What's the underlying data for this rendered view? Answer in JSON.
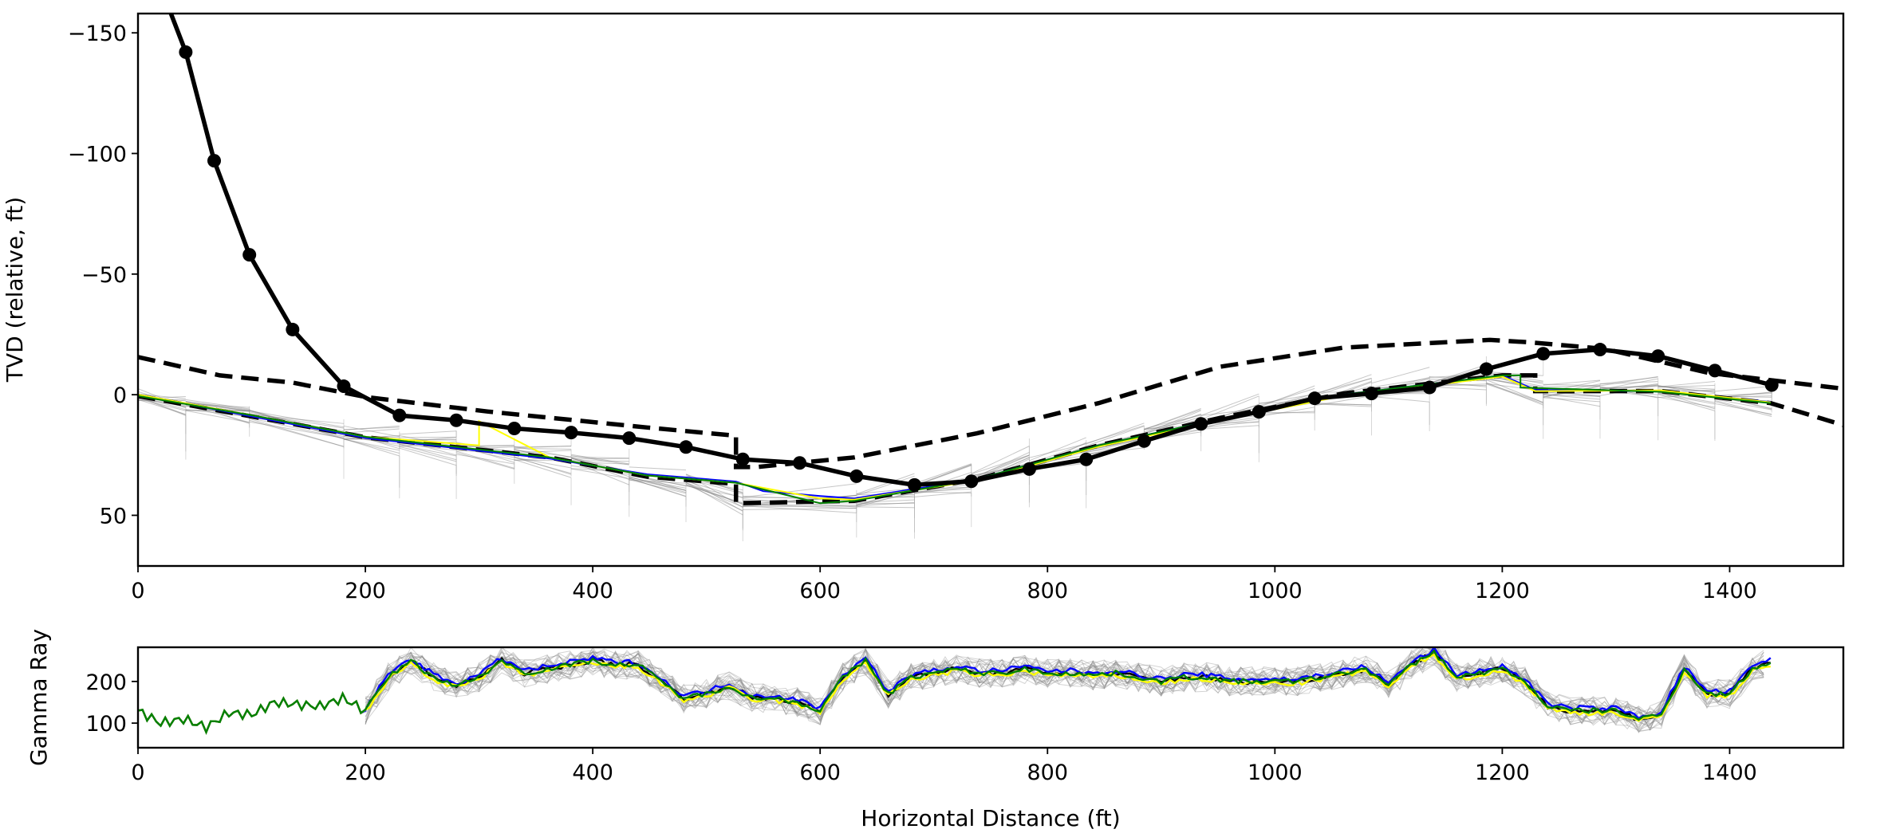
{
  "chart_data": [
    {
      "type": "line",
      "xlabel": "",
      "ylabel": "TVD (relative, ft)",
      "xlim": [
        0,
        1500
      ],
      "ylim": [
        71,
        -158
      ],
      "y_inverted": true,
      "grid": false,
      "xticks": [
        "0",
        "200",
        "400",
        "600",
        "800",
        "1000",
        "1200",
        "1400"
      ],
      "yticks": [
        "−150",
        "−100",
        "−50",
        "0",
        "50"
      ],
      "ytick_values": [
        -150,
        -100,
        -50,
        0,
        50
      ],
      "xtick_values": [
        0,
        200,
        400,
        600,
        800,
        1000,
        1200,
        1400
      ],
      "colors": {
        "trajectory": "#000000",
        "boundary": "#000000",
        "blue": "#0000ff",
        "yellow": "#ffff00",
        "green": "#008000",
        "ensemble": "#808080"
      },
      "series": [
        {
          "style": "solid-markers",
          "color": "#000000",
          "x": [
            29,
            42,
            67,
            98,
            136,
            181,
            230,
            280,
            331,
            381,
            432,
            482,
            532,
            582,
            632,
            683,
            733,
            784,
            834,
            885,
            935,
            986,
            1035,
            1085,
            1136,
            1186,
            1236,
            1286,
            1337,
            1387,
            1437
          ],
          "y": [
            -158,
            -142,
            -97,
            -58,
            -27,
            -3.5,
            8.6,
            10.6,
            14,
            15.7,
            18,
            21.7,
            26.8,
            28.3,
            33.8,
            37.4,
            35.9,
            30.8,
            26.8,
            19.2,
            12.1,
            7.1,
            1.5,
            -0.5,
            -3,
            -10.6,
            -17,
            -18.7,
            -16,
            -10,
            -4
          ]
        },
        {
          "style": "dashed",
          "color": "#000000",
          "x": [
            0,
            72,
            136,
            201,
            308,
            448,
            526,
            526,
            544,
            630,
            738,
            845,
            952,
            1060,
            1189,
            1225,
            1290,
            1382,
            1500
          ],
          "y": [
            -15.6,
            -8,
            -5,
            1,
            7,
            13.6,
            17,
            30,
            30,
            26,
            16,
            3.5,
            -11.6,
            -19.5,
            -22.7,
            -21.7,
            -19,
            -9,
            -2.5
          ]
        },
        {
          "style": "dashed",
          "color": "#000000",
          "x": [
            0,
            100,
            201,
            362,
            448,
            526,
            526,
            630,
            738,
            845,
            952,
            1060,
            1200,
            1229,
            1229,
            1339,
            1436,
            1500
          ],
          "y": [
            0.5,
            9,
            17.7,
            26,
            34,
            37,
            45,
            44,
            35,
            21,
            9.6,
            -0.5,
            -8,
            -8,
            -1.5,
            -1.5,
            3.5,
            12.6
          ]
        },
        {
          "style": "solid",
          "color": "#0000ff",
          "x": [
            0,
            100,
            201,
            362,
            448,
            526,
            550,
            600,
            630,
            738,
            845,
            952,
            1060,
            1200,
            1229,
            1339,
            1436
          ],
          "y": [
            0,
            9,
            18,
            26.5,
            33,
            36,
            40,
            42,
            43,
            35,
            21,
            10,
            0,
            -8,
            -2,
            -1.5,
            3
          ]
        },
        {
          "style": "solid",
          "color": "#ffff00",
          "x": [
            0,
            100,
            201,
            300,
            300,
            362,
            448,
            526,
            600,
            630,
            738,
            845,
            952,
            1060,
            1200,
            1229,
            1339,
            1436
          ],
          "y": [
            0,
            8.5,
            17.5,
            21,
            11,
            26,
            33.5,
            36.5,
            43,
            43.5,
            35.5,
            21.5,
            10.5,
            0.5,
            -7.5,
            -1.5,
            -1.8,
            3.2
          ]
        },
        {
          "style": "solid",
          "color": "#008000",
          "x": [
            0,
            100,
            201,
            362,
            448,
            526,
            600,
            630,
            738,
            845,
            952,
            1060,
            1200,
            1216,
            1216,
            1339,
            1436
          ],
          "y": [
            0.5,
            8.5,
            17.5,
            26,
            33.5,
            36.5,
            45,
            44,
            35,
            21,
            10,
            0,
            -8,
            -8,
            -3,
            -1.2,
            3.5
          ]
        }
      ]
    },
    {
      "type": "line",
      "xlabel": "Horizontal Distance (ft)",
      "ylabel": "Gamma Ray",
      "xlim": [
        0,
        1500
      ],
      "ylim": [
        41,
        282
      ],
      "grid": false,
      "xticks": [
        "0",
        "200",
        "400",
        "600",
        "800",
        "1000",
        "1200",
        "1400"
      ],
      "xtick_values": [
        0,
        200,
        400,
        600,
        800,
        1000,
        1200,
        1400
      ],
      "yticks": [
        "100",
        "200"
      ],
      "ytick_values": [
        100,
        200
      ],
      "series": [
        {
          "color": "#008000",
          "x": [
            0,
            20,
            40,
            60,
            80,
            100,
            120,
            140,
            160,
            180,
            200,
            220,
            240,
            260,
            280,
            300,
            320,
            340,
            360,
            380,
            400,
            420,
            440,
            460,
            480,
            500,
            520,
            540,
            560,
            580,
            600,
            620,
            640,
            660,
            680,
            700,
            720,
            740,
            760,
            780,
            800,
            820,
            840,
            860,
            880,
            900,
            920,
            940,
            960,
            980,
            1000,
            1020,
            1040,
            1060,
            1080,
            1100,
            1120,
            1140,
            1160,
            1180,
            1200,
            1220,
            1240,
            1260,
            1280,
            1300,
            1320,
            1340,
            1360,
            1380,
            1400,
            1420,
            1440
          ],
          "y": [
            130,
            100,
            110,
            90,
            125,
            120,
            150,
            145,
            140,
            160,
            130,
            210,
            250,
            210,
            190,
            210,
            250,
            220,
            230,
            240,
            250,
            240,
            240,
            200,
            160,
            170,
            190,
            160,
            160,
            150,
            130,
            210,
            250,
            170,
            210,
            220,
            230,
            220,
            220,
            230,
            220,
            220,
            215,
            220,
            210,
            200,
            210,
            210,
            200,
            200,
            200,
            200,
            210,
            220,
            230,
            190,
            240,
            270,
            210,
            220,
            230,
            200,
            140,
            130,
            130,
            130,
            110,
            120,
            230,
            170,
            170,
            230,
            250
          ]
        }
      ]
    }
  ]
}
